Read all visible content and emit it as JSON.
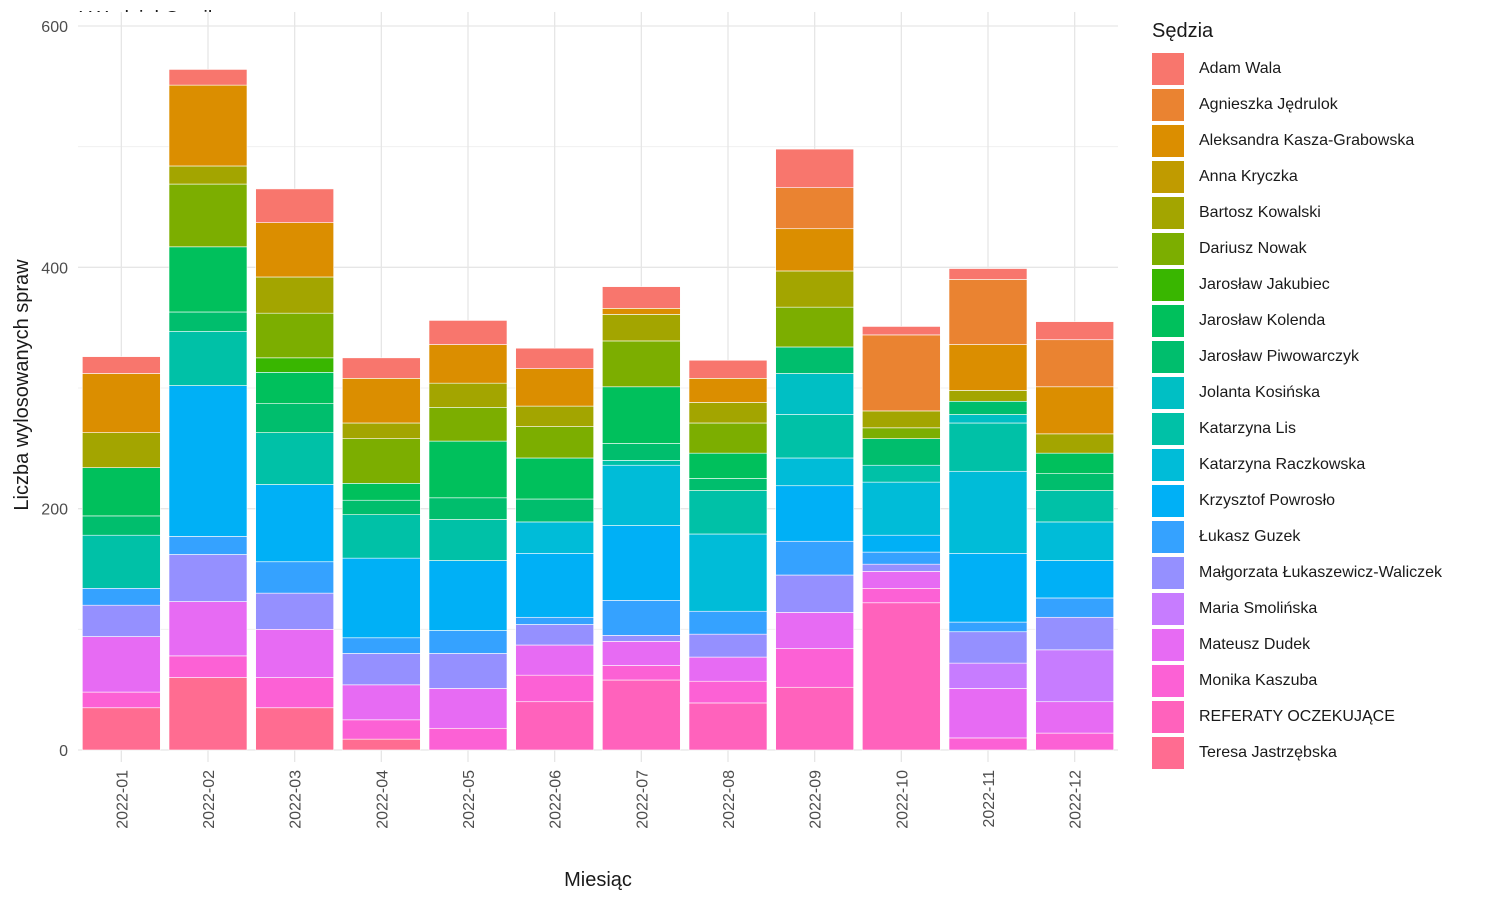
{
  "chart_data": {
    "type": "bar",
    "stacked": true,
    "title": "I Wydział Cywilny",
    "xlabel": "Miesiąc",
    "ylabel": "Liczba wylosowanych spraw",
    "ylim": [
      0,
      600
    ],
    "yticks": [
      0,
      200,
      400,
      600
    ],
    "grid": true,
    "legend_title": "Sędzia",
    "legend_position": "right",
    "categories": [
      "2022-01",
      "2022-02",
      "2022-03",
      "2022-04",
      "2022-05",
      "2022-06",
      "2022-07",
      "2022-08",
      "2022-09",
      "2022-10",
      "2022-11",
      "2022-12"
    ],
    "series": [
      {
        "name": "Teresa Jastrzębska",
        "color": "#FF6C91",
        "values": [
          35,
          60,
          35,
          9,
          0,
          0,
          0,
          0,
          0,
          0,
          0,
          0
        ]
      },
      {
        "name": "REFERATY OCZEKUJĄCE",
        "color": "#FF62BC",
        "values": [
          0,
          0,
          0,
          0,
          0,
          40,
          58,
          39,
          52,
          122,
          0,
          0
        ]
      },
      {
        "name": "Monika Kaszuba",
        "color": "#FC61D5",
        "values": [
          13,
          18,
          25,
          16,
          18,
          22,
          12,
          18,
          32,
          12,
          10,
          14
        ]
      },
      {
        "name": "Mateusz Dudek",
        "color": "#E76BF3",
        "values": [
          46,
          45,
          40,
          29,
          33,
          25,
          20,
          20,
          30,
          14,
          41,
          26
        ]
      },
      {
        "name": "Maria Smolińska",
        "color": "#C77CFF",
        "values": [
          0,
          0,
          0,
          0,
          0,
          0,
          0,
          0,
          0,
          0,
          21,
          43
        ]
      },
      {
        "name": "Małgorzata Łukaszewicz-Waliczek",
        "color": "#9590FF",
        "values": [
          26,
          39,
          30,
          26,
          29,
          17,
          5,
          19,
          31,
          6,
          26,
          27
        ]
      },
      {
        "name": "Łukasz Guzek",
        "color": "#35A2FF",
        "values": [
          14,
          15,
          26,
          13,
          19,
          6,
          29,
          19,
          28,
          10,
          8,
          16
        ]
      },
      {
        "name": "Krzysztof Powrosło",
        "color": "#00B0F6",
        "values": [
          0,
          125,
          64,
          66,
          58,
          53,
          62,
          0,
          46,
          14,
          57,
          31
        ]
      },
      {
        "name": "Katarzyna Raczkowska",
        "color": "#00BCD8",
        "values": [
          0,
          0,
          0,
          0,
          0,
          26,
          50,
          64,
          23,
          44,
          68,
          32
        ]
      },
      {
        "name": "Katarzyna Lis",
        "color": "#00C1A7",
        "values": [
          44,
          45,
          43,
          36,
          34,
          0,
          4,
          36,
          36,
          14,
          40,
          26
        ]
      },
      {
        "name": "Jolanta Kosińska",
        "color": "#00BFC4",
        "values": [
          0,
          0,
          0,
          0,
          0,
          0,
          0,
          0,
          34,
          0,
          7,
          0
        ]
      },
      {
        "name": "Jarosław Piwowarczyk",
        "color": "#00BE6D",
        "values": [
          16,
          16,
          24,
          12,
          18,
          19,
          14,
          10,
          22,
          22,
          11,
          14
        ]
      },
      {
        "name": "Jarosław Kolenda",
        "color": "#00C05C",
        "values": [
          40,
          54,
          26,
          14,
          47,
          34,
          47,
          21,
          0,
          0,
          0,
          17
        ]
      },
      {
        "name": "Jarosław Jakubiec",
        "color": "#39B600",
        "values": [
          0,
          0,
          12,
          0,
          0,
          0,
          0,
          0,
          0,
          0,
          0,
          0
        ]
      },
      {
        "name": "Dariusz Nowak",
        "color": "#7CAE00",
        "values": [
          0,
          52,
          37,
          37,
          28,
          26,
          38,
          25,
          33,
          9,
          0,
          0
        ]
      },
      {
        "name": "Bartosz Kowalski",
        "color": "#A3A500",
        "values": [
          29,
          15,
          30,
          13,
          20,
          17,
          22,
          17,
          30,
          14,
          9,
          16
        ]
      },
      {
        "name": "Anna Kryczka",
        "color": "#C09B00",
        "values": [
          0,
          0,
          0,
          0,
          0,
          0,
          0,
          0,
          0,
          0,
          0,
          0
        ]
      },
      {
        "name": "Aleksandra Kasza-Grabowska",
        "color": "#DB8E00",
        "values": [
          49,
          67,
          45,
          37,
          32,
          31,
          5,
          20,
          35,
          0,
          38,
          39
        ]
      },
      {
        "name": "Agnieszka Jędrulok",
        "color": "#EA8331",
        "values": [
          0,
          0,
          0,
          0,
          0,
          0,
          0,
          0,
          34,
          63,
          54,
          39
        ]
      },
      {
        "name": "Adam Wala",
        "color": "#F8766D",
        "values": [
          14,
          13,
          28,
          17,
          20,
          17,
          18,
          15,
          32,
          7,
          9,
          15
        ]
      }
    ]
  },
  "legend_order": [
    "Adam Wala",
    "Agnieszka Jędrulok",
    "Aleksandra Kasza-Grabowska",
    "Anna Kryczka",
    "Bartosz Kowalski",
    "Dariusz Nowak",
    "Jarosław Jakubiec",
    "Jarosław Kolenda",
    "Jarosław Piwowarczyk",
    "Jolanta Kosińska",
    "Katarzyna Lis",
    "Katarzyna Raczkowska",
    "Krzysztof Powrosło",
    "Łukasz Guzek",
    "Małgorzata Łukaszewicz-Waliczek",
    "Maria Smolińska",
    "Mateusz Dudek",
    "Monika Kaszuba",
    "REFERATY OCZEKUJĄCE",
    "Teresa Jastrzębska"
  ]
}
